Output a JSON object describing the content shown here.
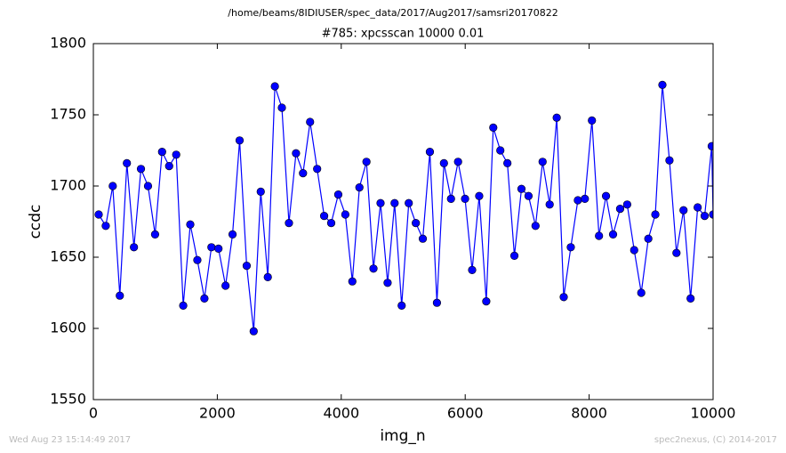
{
  "chart_data": {
    "type": "line",
    "suptitle": "/home/beams/8IDIUSER/spec_data/2017/Aug2017/samsri20170822",
    "title": "#785: xpcsscan 10000 0.01",
    "xlabel": "img_n",
    "ylabel": "ccdc",
    "footer_left": "Wed Aug 23 15:14:49 2017",
    "footer_right": "spec2nexus, (C) 2014-2017",
    "xlim": [
      0,
      10000
    ],
    "xticks": [
      0,
      2000,
      4000,
      6000,
      8000,
      10000
    ],
    "ylim": [
      1550,
      1800
    ],
    "yticks": [
      1550,
      1600,
      1650,
      1700,
      1750,
      1800
    ],
    "x": [
      86,
      200,
      313,
      427,
      541,
      655,
      768,
      882,
      996,
      1109,
      1223,
      1337,
      1450,
      1564,
      1678,
      1792,
      1905,
      2019,
      2133,
      2246,
      2360,
      2474,
      2587,
      2701,
      2815,
      2929,
      3042,
      3156,
      3270,
      3383,
      3497,
      3611,
      3724,
      3838,
      3952,
      4066,
      4179,
      4293,
      4407,
      4520,
      4634,
      4748,
      4861,
      4975,
      5089,
      5203,
      5316,
      5430,
      5544,
      5657,
      5771,
      5885,
      5998,
      6112,
      6226,
      6340,
      6453,
      6567,
      6681,
      6794,
      6908,
      7022,
      7135,
      7249,
      7363,
      7477,
      7590,
      7704,
      7818,
      7931,
      8045,
      8159,
      8272,
      8386,
      8500,
      8614,
      8727,
      8841,
      8955,
      9068,
      9182,
      9296,
      9409,
      9523,
      9637,
      9751,
      9864,
      9978,
      10000
    ],
    "series": [
      {
        "color": "#0000ff",
        "values": [
          1680,
          1672,
          1700,
          1623,
          1716,
          1657,
          1712,
          1700,
          1666,
          1724,
          1714,
          1722,
          1616,
          1673,
          1648,
          1621,
          1657,
          1656,
          1630,
          1666,
          1732,
          1644,
          1598,
          1696,
          1636,
          1770,
          1755,
          1674,
          1723,
          1709,
          1745,
          1712,
          1679,
          1674,
          1694,
          1680,
          1633,
          1699,
          1717,
          1642,
          1688,
          1632,
          1688,
          1616,
          1688,
          1674,
          1663,
          1724,
          1618,
          1716,
          1691,
          1717,
          1691,
          1641,
          1693,
          1619,
          1741,
          1725,
          1716,
          1651,
          1698,
          1693,
          1672,
          1717,
          1687,
          1748,
          1622,
          1657,
          1690,
          1691,
          1746,
          1665,
          1693,
          1666,
          1684,
          1687,
          1655,
          1625,
          1663,
          1680,
          1771,
          1718,
          1653,
          1683,
          1621,
          1685,
          1679,
          1728,
          1680
        ]
      }
    ]
  }
}
